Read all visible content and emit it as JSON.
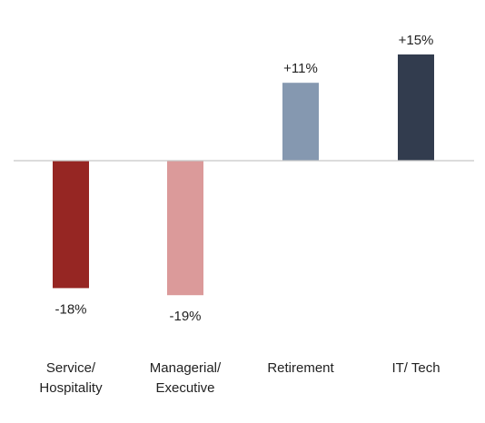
{
  "chart_data": {
    "type": "bar",
    "categories": [
      [
        "Service/",
        "Hospitality"
      ],
      [
        "Managerial/",
        "Executive"
      ],
      [
        "Retirement"
      ],
      [
        "IT/ Tech"
      ]
    ],
    "values": [
      -18,
      -19,
      11,
      15
    ],
    "data_labels": [
      "-18%",
      "-19%",
      "+11%",
      "+15%"
    ],
    "colors": [
      "#962623",
      "#DB9A9A",
      "#8598B0",
      "#323C4E"
    ],
    "baseline_color": "#C8C8C8",
    "title": "",
    "xlabel": "",
    "ylabel": "",
    "ylim": [
      -19,
      15
    ],
    "grid": false,
    "legend": "none"
  }
}
